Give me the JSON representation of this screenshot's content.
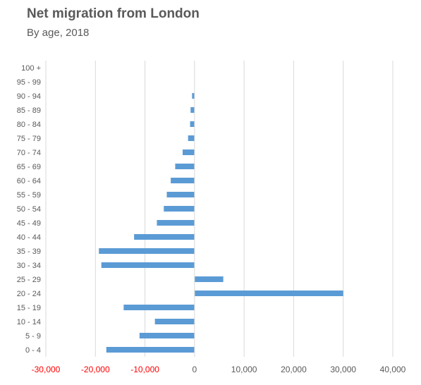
{
  "chart_data": {
    "type": "bar",
    "orientation": "horizontal",
    "title": "Net migration from London",
    "subtitle": "By age, 2018",
    "categories": [
      "0 - 4",
      "5 - 9",
      "10 - 14",
      "15 - 19",
      "20 - 24",
      "25 - 29",
      "30 - 34",
      "35 - 39",
      "40 - 44",
      "45 - 49",
      "50 - 54",
      "55 - 59",
      "60 - 64",
      "65 - 69",
      "70 - 74",
      "75 - 79",
      "80 - 84",
      "85 - 89",
      "90 - 94",
      "95 - 99",
      "100 +"
    ],
    "values": [
      -17800,
      -11100,
      -8000,
      -14300,
      30000,
      5800,
      -18800,
      -19300,
      -12200,
      -7600,
      -6200,
      -5600,
      -4800,
      -3900,
      -2400,
      -1300,
      -900,
      -800,
      -500,
      0,
      0
    ],
    "xlim": [
      -30000,
      40000
    ],
    "xticks": [
      -30000,
      -20000,
      -10000,
      0,
      10000,
      20000,
      30000,
      40000
    ],
    "xtick_labels": [
      "-30,000",
      "-20,000",
      "-10,000",
      "0",
      "10,000",
      "20,000",
      "30,000",
      "40,000"
    ],
    "xlabel": "",
    "ylabel": "",
    "grid": "vertical",
    "legend": "none",
    "colors": {
      "bar": "#5b9bd5",
      "negative_tick": "#ff0000",
      "positive_tick": "#595959",
      "grid": "#d9d9d9",
      "text": "#595959"
    }
  }
}
